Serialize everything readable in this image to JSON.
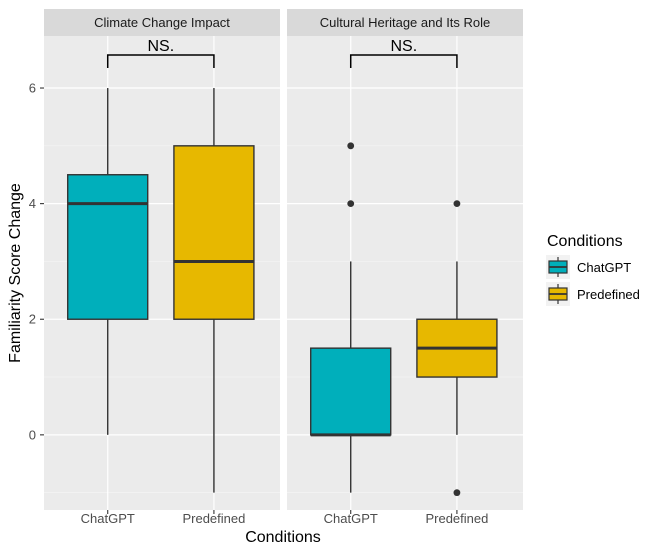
{
  "chart_data": {
    "type": "boxplot",
    "xlabel": "Conditions",
    "ylabel": "Familiarity Score Change",
    "ylim": [
      -1.3,
      6.9
    ],
    "yticks": [
      0,
      2,
      4,
      6
    ],
    "grid": true,
    "categories": [
      "ChatGPT",
      "Predefined"
    ],
    "colors": {
      "ChatGPT": "#00AFBB",
      "Predefined": "#E7B800"
    },
    "legend": {
      "title": "Conditions",
      "position": "right",
      "items": [
        {
          "label": "ChatGPT",
          "color": "#00AFBB"
        },
        {
          "label": "Predefined",
          "color": "#E7B800"
        }
      ]
    },
    "panels": [
      {
        "title": "Climate Change Impact",
        "significance": "NS.",
        "boxes": [
          {
            "category": "ChatGPT",
            "min": 0,
            "q1": 2,
            "median": 4,
            "q3": 4.5,
            "max": 6,
            "outliers": []
          },
          {
            "category": "Predefined",
            "min": -1,
            "q1": 2,
            "median": 3,
            "q3": 5,
            "max": 6,
            "outliers": []
          }
        ]
      },
      {
        "title": "Cultural Heritage and Its Role",
        "significance": "NS.",
        "boxes": [
          {
            "category": "ChatGPT",
            "min": -1,
            "q1": 0,
            "median": 0,
            "q3": 1.5,
            "max": 3,
            "outliers": [
              4,
              5
            ]
          },
          {
            "category": "Predefined",
            "min": 0,
            "q1": 1,
            "median": 1.5,
            "q3": 2,
            "max": 3,
            "outliers": [
              -1,
              4
            ]
          }
        ]
      }
    ]
  }
}
